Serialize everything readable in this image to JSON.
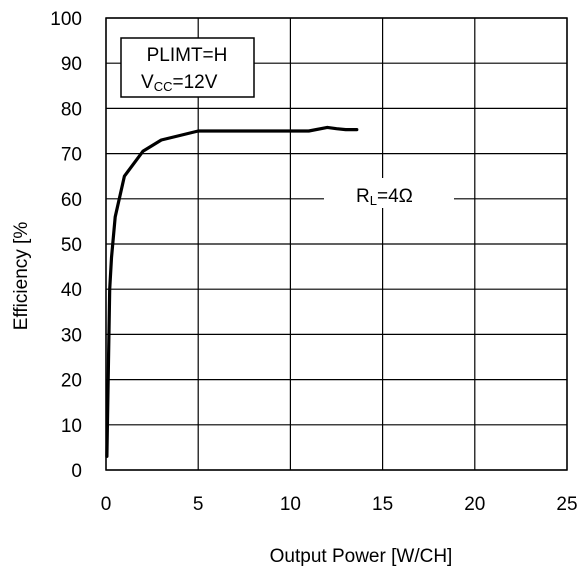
{
  "chart_data": {
    "type": "line",
    "title": "",
    "xlabel": "Output Power [W/CH]",
    "ylabel": "Efficiency [%",
    "xlim": [
      0,
      25
    ],
    "ylim": [
      0,
      100
    ],
    "x_ticks": [
      "0",
      "5",
      "10",
      "15",
      "20",
      "25"
    ],
    "y_ticks": [
      "0",
      "10",
      "20",
      "30",
      "40",
      "50",
      "60",
      "70",
      "80",
      "90",
      "100"
    ],
    "grid": true,
    "series": [
      {
        "x": [
          0.05,
          0.1,
          0.2,
          0.3,
          0.5,
          1.0,
          2.0,
          3.0,
          4.0,
          5.0,
          6.0,
          8.0,
          10.0,
          11.0,
          12.0,
          12.5,
          13.0,
          13.6
        ],
        "y": [
          3,
          15,
          40,
          47,
          56,
          65,
          70.5,
          73,
          74,
          75,
          75,
          75,
          75,
          75,
          75.8,
          75.5,
          75.3,
          75.3
        ],
        "color": "#000000"
      }
    ],
    "legend_box": {
      "line1": "PLIMT=H",
      "line2_main": "V",
      "line2_sub": "CC",
      "line2_rest": "=12V"
    },
    "series_label": {
      "main": "R",
      "sub": "L",
      "rest": "=4Ω"
    }
  }
}
